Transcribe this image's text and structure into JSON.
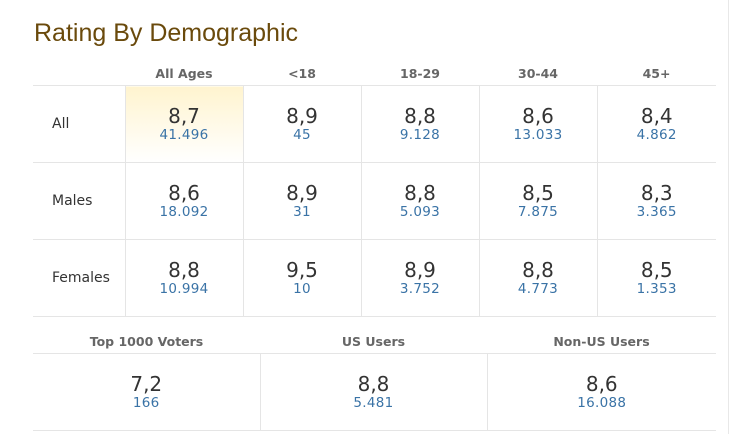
{
  "title": "Rating By Demographic",
  "demographic": {
    "headers": [
      "All Ages",
      "<18",
      "18-29",
      "30-44",
      "45+"
    ],
    "rows": [
      {
        "label": "All",
        "cells": [
          {
            "rating": "8,7",
            "votes": "41.496"
          },
          {
            "rating": "8,9",
            "votes": "45"
          },
          {
            "rating": "8,8",
            "votes": "9.128"
          },
          {
            "rating": "8,6",
            "votes": "13.033"
          },
          {
            "rating": "8,4",
            "votes": "4.862"
          }
        ]
      },
      {
        "label": "Males",
        "cells": [
          {
            "rating": "8,6",
            "votes": "18.092"
          },
          {
            "rating": "8,9",
            "votes": "31"
          },
          {
            "rating": "8,8",
            "votes": "5.093"
          },
          {
            "rating": "8,5",
            "votes": "7.875"
          },
          {
            "rating": "8,3",
            "votes": "3.365"
          }
        ]
      },
      {
        "label": "Females",
        "cells": [
          {
            "rating": "8,8",
            "votes": "10.994"
          },
          {
            "rating": "9,5",
            "votes": "10"
          },
          {
            "rating": "8,9",
            "votes": "3.752"
          },
          {
            "rating": "8,8",
            "votes": "4.773"
          },
          {
            "rating": "8,5",
            "votes": "1.353"
          }
        ]
      }
    ]
  },
  "voters": {
    "headers": [
      "Top 1000 Voters",
      "US Users",
      "Non-US Users"
    ],
    "cells": [
      {
        "rating": "7,2",
        "votes": "166"
      },
      {
        "rating": "8,8",
        "votes": "5.481"
      },
      {
        "rating": "8,6",
        "votes": "16.088"
      }
    ]
  },
  "colors": {
    "title": "#6a4a0c",
    "votes_link": "#3a73a6",
    "highlight": "#fff4cf"
  }
}
